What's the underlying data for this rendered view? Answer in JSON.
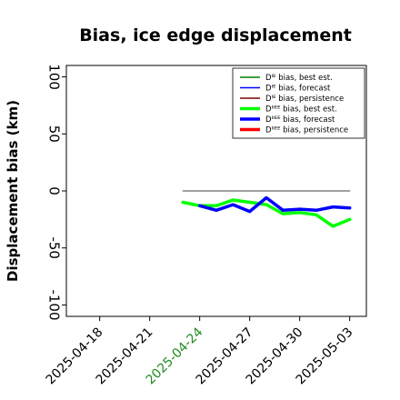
{
  "chart_data": {
    "type": "line",
    "title": "Bias, ice edge displacement",
    "ylabel": "Displacement bias (km)",
    "xlabel": "",
    "ylim": [
      -110,
      110
    ],
    "xlim": [
      "2025-04-16",
      "2025-05-04"
    ],
    "yticks": [
      -100,
      -50,
      0,
      50,
      100
    ],
    "xticks": [
      {
        "date": "2025-04-18",
        "label": "2025-04-18",
        "color": "#000000"
      },
      {
        "date": "2025-04-21",
        "label": "2025-04-21",
        "color": "#000000"
      },
      {
        "date": "2025-04-24",
        "label": "2025-04-24",
        "color": "#228B22"
      },
      {
        "date": "2025-04-27",
        "label": "2025-04-27",
        "color": "#000000"
      },
      {
        "date": "2025-04-30",
        "label": "2025-04-30",
        "color": "#000000"
      },
      {
        "date": "2025-05-03",
        "label": "2025-05-03",
        "color": "#000000"
      }
    ],
    "grid": false,
    "legend_position": "top-right",
    "series": [
      {
        "name": "Dᴵᴱ bias, best est.",
        "color": "#008000",
        "width": "thin",
        "x": [],
        "values": []
      },
      {
        "name": "Dᴵᴱ bias, forecast",
        "color": "#0000FF",
        "width": "thin",
        "x": [],
        "values": []
      },
      {
        "name": "Dᴵᴱ bias, persistence",
        "color": "#800000",
        "width": "thin",
        "x": [],
        "values": []
      },
      {
        "name": "Dᴵᴵᴱᴱ bias, best est.",
        "color": "#00FF00",
        "width": "thick",
        "x": [
          "2025-04-23",
          "2025-04-24",
          "2025-04-25",
          "2025-04-26",
          "2025-04-27",
          "2025-04-28",
          "2025-04-29",
          "2025-04-30",
          "2025-05-01",
          "2025-05-02",
          "2025-05-03"
        ],
        "values": [
          -10,
          -13,
          -13,
          -8,
          -10,
          -12,
          -20,
          -19,
          -21,
          -31,
          -25
        ]
      },
      {
        "name": "Dᴵᴵᴱᴱ bias, forecast",
        "color": "#0000FF",
        "width": "thick",
        "x": [
          "2025-04-24",
          "2025-04-25",
          "2025-04-26",
          "2025-04-27",
          "2025-04-28",
          "2025-04-29",
          "2025-04-30",
          "2025-05-01",
          "2025-05-02",
          "2025-05-03"
        ],
        "values": [
          -13,
          -17,
          -12,
          -18,
          -6,
          -17,
          -16,
          -17,
          -14,
          -15
        ]
      },
      {
        "name": "Dᴵᴵᴱᴱ bias, persistence",
        "color": "#FF0000",
        "width": "thick",
        "x": [],
        "values": []
      },
      {
        "name": "",
        "color": "#808080",
        "width": "thin",
        "legend": false,
        "x": [
          "2025-04-23",
          "2025-05-03"
        ],
        "values": [
          0,
          0
        ]
      }
    ]
  }
}
